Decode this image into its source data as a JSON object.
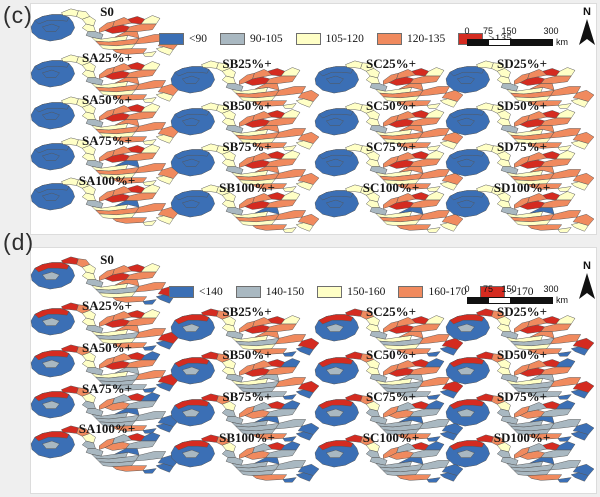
{
  "palette": [
    "#3B6FB5",
    "#A9B8C1",
    "#FFFFC6",
    "#F08A5E",
    "#D42B20"
  ],
  "map_variants": {
    "c_base": [
      0,
      0,
      0,
      2,
      2,
      2,
      2,
      1,
      3,
      4,
      4,
      3,
      2,
      3,
      2,
      3,
      3,
      2,
      3,
      3,
      2,
      3,
      2
    ],
    "c_high": [
      0,
      0,
      0,
      2,
      2,
      2,
      2,
      1,
      3,
      4,
      4,
      3,
      2,
      3,
      2,
      3,
      0,
      2,
      3,
      3,
      2,
      3,
      2
    ],
    "d_base": [
      0,
      4,
      1,
      4,
      3,
      2,
      2,
      1,
      3,
      4,
      4,
      3,
      2,
      3,
      2,
      1,
      3,
      2,
      3,
      4,
      0,
      3,
      0
    ],
    "d_mid": [
      0,
      4,
      1,
      4,
      3,
      2,
      2,
      1,
      3,
      4,
      4,
      3,
      0,
      3,
      2,
      1,
      1,
      1,
      3,
      4,
      0,
      1,
      0
    ],
    "d_high": [
      0,
      4,
      1,
      4,
      3,
      2,
      1,
      1,
      3,
      3,
      4,
      1,
      0,
      1,
      1,
      1,
      0,
      1,
      1,
      0,
      0,
      3,
      0
    ]
  },
  "panels": [
    {
      "id": "c",
      "letter": "(c)",
      "legend": [
        {
          "label": "<90",
          "color": "#3B6FB5"
        },
        {
          "label": "90-105",
          "color": "#A9B8C1"
        },
        {
          "label": "105-120",
          "color": "#FFFFC6"
        },
        {
          "label": "120-135",
          "color": "#F08A5E"
        },
        {
          "label": ">135",
          "color": "#D42B20"
        }
      ],
      "scalebar": {
        "ticks": [
          "0",
          "75",
          "150",
          "300"
        ],
        "unit": "km"
      },
      "north_label": "N",
      "columns": [
        {
          "maps": [
            {
              "label": "S0",
              "variant": "c_base"
            },
            {
              "label": "SA25%+",
              "variant": "c_base"
            },
            {
              "label": "SA50%+",
              "variant": "c_base"
            },
            {
              "label": "SA75%+",
              "variant": "c_high"
            },
            {
              "label": "SA100%+",
              "variant": "c_high"
            }
          ]
        },
        {
          "maps": [
            {
              "label": "SB25%+",
              "variant": "c_base"
            },
            {
              "label": "SB50%+",
              "variant": "c_base"
            },
            {
              "label": "SB75%+",
              "variant": "c_base"
            },
            {
              "label": "SB100%+",
              "variant": "c_high"
            }
          ]
        },
        {
          "maps": [
            {
              "label": "SC25%+",
              "variant": "c_base"
            },
            {
              "label": "SC50%+",
              "variant": "c_base"
            },
            {
              "label": "SC75%+",
              "variant": "c_base"
            },
            {
              "label": "SC100%+",
              "variant": "c_high"
            }
          ]
        },
        {
          "maps": [
            {
              "label": "SD25%+",
              "variant": "c_base"
            },
            {
              "label": "SD50%+",
              "variant": "c_base"
            },
            {
              "label": "SD75%+",
              "variant": "c_base"
            },
            {
              "label": "SD100%+",
              "variant": "c_high"
            }
          ]
        }
      ]
    },
    {
      "id": "d",
      "letter": "(d)",
      "legend": [
        {
          "label": "<140",
          "color": "#3B6FB5"
        },
        {
          "label": "140-150",
          "color": "#A9B8C1"
        },
        {
          "label": "150-160",
          "color": "#FFFFC6"
        },
        {
          "label": "160-170",
          "color": "#F08A5E"
        },
        {
          "label": ">170",
          "color": "#D42B20"
        }
      ],
      "scalebar": {
        "ticks": [
          "0",
          "75",
          "150",
          "300"
        ],
        "unit": "km"
      },
      "north_label": "N",
      "columns": [
        {
          "maps": [
            {
              "label": "S0",
              "variant": "d_base"
            },
            {
              "label": "SA25%+",
              "variant": "d_base"
            },
            {
              "label": "SA50%+",
              "variant": "d_mid"
            },
            {
              "label": "SA75%+",
              "variant": "d_high"
            },
            {
              "label": "SA100%+",
              "variant": "d_high"
            }
          ]
        },
        {
          "maps": [
            {
              "label": "SB25%+",
              "variant": "d_base"
            },
            {
              "label": "SB50%+",
              "variant": "d_mid"
            },
            {
              "label": "SB75%+",
              "variant": "d_high"
            },
            {
              "label": "SB100%+",
              "variant": "d_high"
            }
          ]
        },
        {
          "maps": [
            {
              "label": "SC25%+",
              "variant": "d_base"
            },
            {
              "label": "SC50%+",
              "variant": "d_mid"
            },
            {
              "label": "SC75%+",
              "variant": "d_high"
            },
            {
              "label": "SC100%+",
              "variant": "d_high"
            }
          ]
        },
        {
          "maps": [
            {
              "label": "SD25%+",
              "variant": "d_base"
            },
            {
              "label": "SD50%+",
              "variant": "d_mid"
            },
            {
              "label": "SD75%+",
              "variant": "d_high"
            },
            {
              "label": "SD100%+",
              "variant": "d_high"
            }
          ]
        }
      ]
    }
  ]
}
